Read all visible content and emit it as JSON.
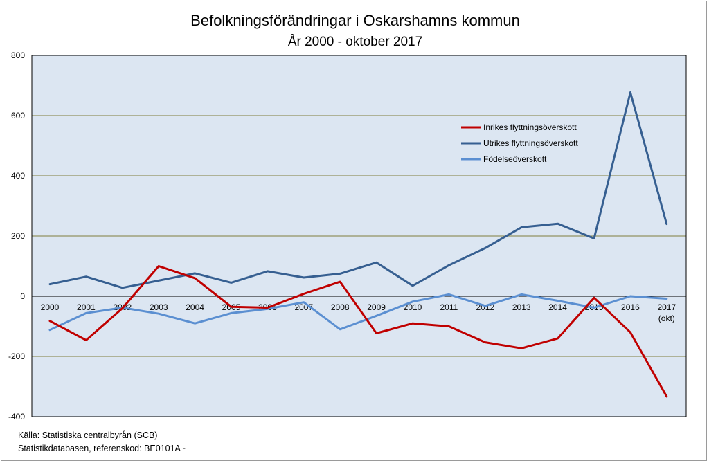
{
  "chart_data": {
    "type": "line",
    "title": "Befolkningsförändringar i Oskarshamns kommun",
    "subtitle": "År 2000 - oktober 2017",
    "categories": [
      "2000",
      "2001",
      "2002",
      "2003",
      "2004",
      "2005",
      "2006",
      "2007",
      "2008",
      "2009",
      "2010",
      "2011",
      "2012",
      "2013",
      "2014",
      "2015",
      "2016",
      "2017"
    ],
    "category_sublabels": {
      "2017": "(okt)"
    },
    "ylim": [
      -400,
      800
    ],
    "yticks": [
      "800",
      "600",
      "400",
      "200",
      "0",
      "-200",
      "-400"
    ],
    "grid": true,
    "legend_position": "top-right",
    "series": [
      {
        "name": "Inrikes flyttningsöverskott",
        "color": "#c00000",
        "values": [
          -82,
          -146,
          -40,
          100,
          60,
          -35,
          -38,
          8,
          48,
          -123,
          -90,
          -100,
          -153,
          -173,
          -140,
          -5,
          -120,
          -333
        ]
      },
      {
        "name": "Utrikes flyttningsöverskott",
        "color": "#365f91",
        "values": [
          40,
          65,
          28,
          52,
          76,
          45,
          83,
          62,
          75,
          112,
          35,
          103,
          160,
          229,
          241,
          192,
          677,
          240
        ]
      },
      {
        "name": "Födelseöverskott",
        "color": "#5b8fd1",
        "values": [
          -112,
          -56,
          -38,
          -58,
          -90,
          -56,
          -42,
          -20,
          -110,
          -65,
          -18,
          6,
          -32,
          6,
          -15,
          -38,
          0,
          -8
        ]
      }
    ],
    "source_lines": [
      "Källa: Statistiska centralbyrån (SCB)",
      "Statistikdatabasen, referenskod: BE0101A~"
    ]
  },
  "colors": {
    "plot_background": "#dce6f2",
    "gridline": "#7f7f3f",
    "border": "#000000"
  }
}
